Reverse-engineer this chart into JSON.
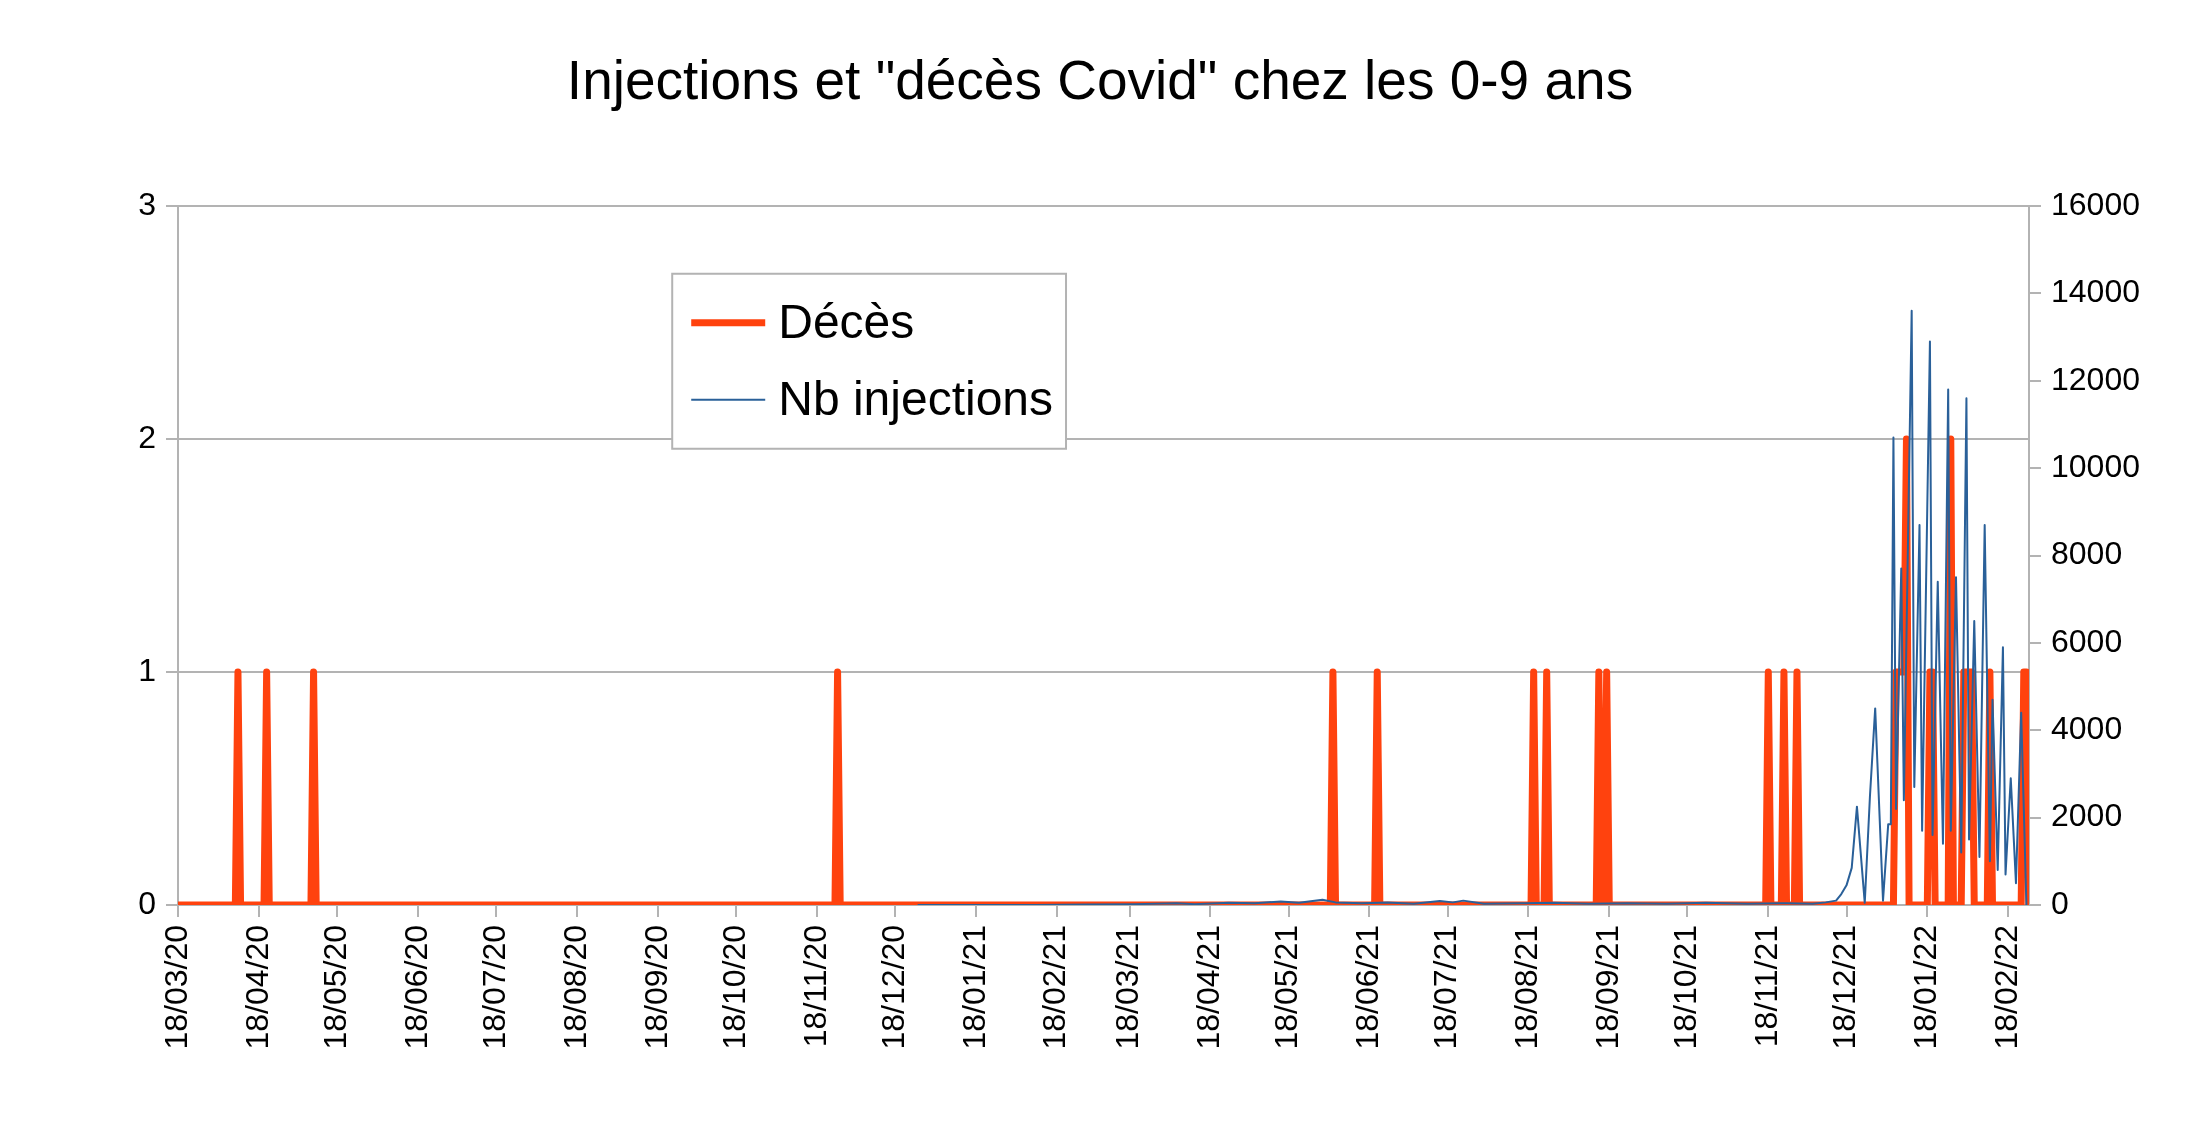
{
  "chart_data": {
    "type": "line",
    "title": "Injections et \"décès Covid\" chez les 0-9 ans",
    "xlim": [
      "2020-03-18",
      "2022-02-26"
    ],
    "xticks": [
      {
        "value": "2020-03-18",
        "label": "18/03/20"
      },
      {
        "value": "2020-04-18",
        "label": "18/04/20"
      },
      {
        "value": "2020-05-18",
        "label": "18/05/20"
      },
      {
        "value": "2020-06-18",
        "label": "18/06/20"
      },
      {
        "value": "2020-07-18",
        "label": "18/07/20"
      },
      {
        "value": "2020-08-18",
        "label": "18/08/20"
      },
      {
        "value": "2020-09-18",
        "label": "18/09/20"
      },
      {
        "value": "2020-10-18",
        "label": "18/10/20"
      },
      {
        "value": "2020-11-18",
        "label": "18/11/20"
      },
      {
        "value": "2020-12-18",
        "label": "18/12/20"
      },
      {
        "value": "2021-01-18",
        "label": "18/01/21"
      },
      {
        "value": "2021-02-18",
        "label": "18/02/21"
      },
      {
        "value": "2021-03-18",
        "label": "18/03/21"
      },
      {
        "value": "2021-04-18",
        "label": "18/04/21"
      },
      {
        "value": "2021-05-18",
        "label": "18/05/21"
      },
      {
        "value": "2021-06-18",
        "label": "18/06/21"
      },
      {
        "value": "2021-07-18",
        "label": "18/07/21"
      },
      {
        "value": "2021-08-18",
        "label": "18/08/21"
      },
      {
        "value": "2021-09-18",
        "label": "18/09/21"
      },
      {
        "value": "2021-10-18",
        "label": "18/10/21"
      },
      {
        "value": "2021-11-18",
        "label": "18/11/21"
      },
      {
        "value": "2021-12-18",
        "label": "18/12/21"
      },
      {
        "value": "2022-01-18",
        "label": "18/01/22"
      },
      {
        "value": "2022-02-18",
        "label": "18/02/22"
      }
    ],
    "ylim": [
      0,
      3
    ],
    "yticks": [
      0,
      1,
      2,
      3
    ],
    "y2lim": [
      0,
      16000
    ],
    "y2ticks": [
      0,
      2000,
      4000,
      6000,
      8000,
      10000,
      12000,
      14000,
      16000
    ],
    "grid": "y",
    "legend": "top left",
    "series": [
      {
        "name": "Décès",
        "color": "#ff420e",
        "x": [
          "2020-03-18",
          "2020-04-09",
          "2020-04-10",
          "2020-04-11",
          "2020-04-20",
          "2020-04-21",
          "2020-04-22",
          "2020-05-08",
          "2020-05-09",
          "2020-05-10",
          "2020-11-25",
          "2020-11-26",
          "2020-11-27",
          "2021-06-03",
          "2021-06-04",
          "2021-06-05",
          "2021-06-20",
          "2021-06-21",
          "2021-06-22",
          "2021-08-19",
          "2021-08-20",
          "2021-08-21",
          "2021-08-24",
          "2021-08-25",
          "2021-08-26",
          "2021-09-13",
          "2021-09-14",
          "2021-09-15",
          "2021-09-16",
          "2021-09-17",
          "2021-09-18",
          "2021-11-17",
          "2021-11-18",
          "2021-11-19",
          "2021-11-23",
          "2021-11-24",
          "2021-11-25",
          "2021-11-28",
          "2021-11-29",
          "2021-11-30",
          "2022-01-05",
          "2022-01-06",
          "2022-01-09",
          "2022-01-10",
          "2022-01-11",
          "2022-01-18",
          "2022-01-19",
          "2022-01-20",
          "2022-01-21",
          "2022-01-26",
          "2022-01-27",
          "2022-01-28",
          "2022-01-31",
          "2022-02-01",
          "2022-02-04",
          "2022-02-05",
          "2022-02-10",
          "2022-02-11",
          "2022-02-12",
          "2022-02-23",
          "2022-02-24",
          "2022-02-25",
          "2022-02-26"
        ],
        "values": [
          0,
          0,
          1,
          0,
          0,
          1,
          0,
          0,
          1,
          0,
          0,
          1,
          0,
          0,
          1,
          0,
          0,
          1,
          0,
          0,
          1,
          0,
          0,
          1,
          0,
          0,
          1,
          0,
          0,
          1,
          0,
          0,
          1,
          0,
          0,
          1,
          0,
          0,
          1,
          0,
          0,
          1,
          1,
          2,
          0,
          0,
          1,
          1,
          0,
          0,
          2,
          0,
          0,
          1,
          1,
          0,
          0,
          1,
          0,
          0,
          1,
          1,
          0
        ]
      },
      {
        "name": "Nb injections",
        "color": "#2a6099",
        "axis": "y2",
        "x": [
          "2020-12-27",
          "2021-01-15",
          "2021-02-10",
          "2021-03-01",
          "2021-03-20",
          "2021-04-05",
          "2021-04-12",
          "2021-04-25",
          "2021-05-05",
          "2021-05-15",
          "2021-05-22",
          "2021-05-31",
          "2021-06-05",
          "2021-06-15",
          "2021-06-25",
          "2021-07-05",
          "2021-07-15",
          "2021-07-20",
          "2021-07-24",
          "2021-08-01",
          "2021-08-15",
          "2021-08-28",
          "2021-09-10",
          "2021-09-25",
          "2021-10-10",
          "2021-10-25",
          "2021-11-10",
          "2021-11-25",
          "2021-12-05",
          "2021-12-10",
          "2021-12-14",
          "2021-12-16",
          "2021-12-18",
          "2021-12-20",
          "2021-12-22",
          "2021-12-25",
          "2021-12-27",
          "2021-12-29",
          "2022-01-01",
          "2022-01-03",
          "2022-01-04",
          "2022-01-05",
          "2022-01-06",
          "2022-01-08",
          "2022-01-09",
          "2022-01-12",
          "2022-01-13",
          "2022-01-15",
          "2022-01-16",
          "2022-01-19",
          "2022-01-20",
          "2022-01-22",
          "2022-01-24",
          "2022-01-26",
          "2022-01-27",
          "2022-01-29",
          "2022-01-31",
          "2022-02-02",
          "2022-02-03",
          "2022-02-05",
          "2022-02-07",
          "2022-02-09",
          "2022-02-11",
          "2022-02-12",
          "2022-02-14",
          "2022-02-16",
          "2022-02-17",
          "2022-02-19",
          "2022-02-21",
          "2022-02-23",
          "2022-02-25"
        ],
        "values": [
          0,
          0,
          0,
          10,
          20,
          40,
          20,
          50,
          40,
          80,
          50,
          120,
          60,
          40,
          60,
          30,
          90,
          60,
          100,
          30,
          40,
          50,
          30,
          40,
          30,
          50,
          30,
          40,
          30,
          60,
          100,
          250,
          450,
          850,
          2250,
          50,
          2500,
          4500,
          100,
          1850,
          1850,
          10700,
          2200,
          7700,
          2400,
          13600,
          2700,
          8700,
          1700,
          12900,
          1600,
          7400,
          1400,
          11800,
          1700,
          7500,
          1200,
          11600,
          1500,
          6500,
          1100,
          8700,
          1000,
          4700,
          800,
          5900,
          700,
          2900,
          500,
          4400,
          0
        ]
      }
    ]
  }
}
